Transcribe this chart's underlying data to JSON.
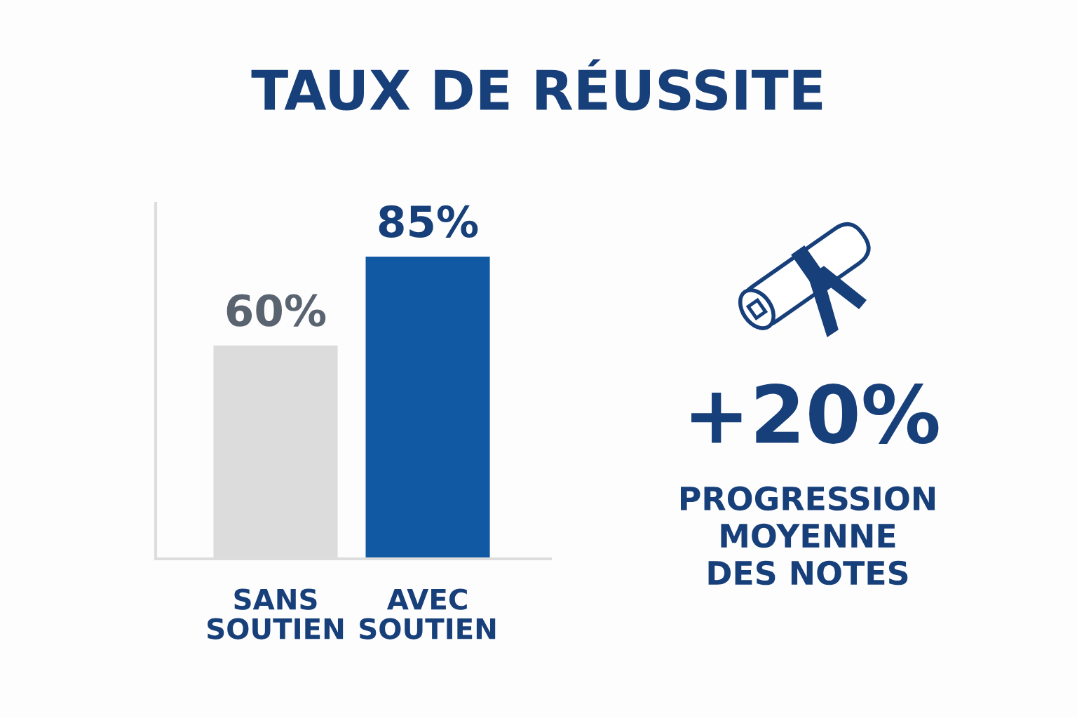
{
  "chart_data": {
    "type": "bar",
    "title": "TAUX DE RÉUSSITE",
    "categories": [
      "SANS\nSOUTIEN",
      "AVEC\nSOUTIEN"
    ],
    "values": [
      60,
      85
    ],
    "colors": [
      "#dcdcdc",
      "#1259a3"
    ],
    "value_labels": [
      "60%",
      "85%"
    ],
    "ylim": [
      0,
      100
    ],
    "tick_labels": "x",
    "grid": false,
    "annotations": [
      "+20%",
      "PROGRESSION\nMOYENNE\nDES NOTES"
    ]
  }
}
